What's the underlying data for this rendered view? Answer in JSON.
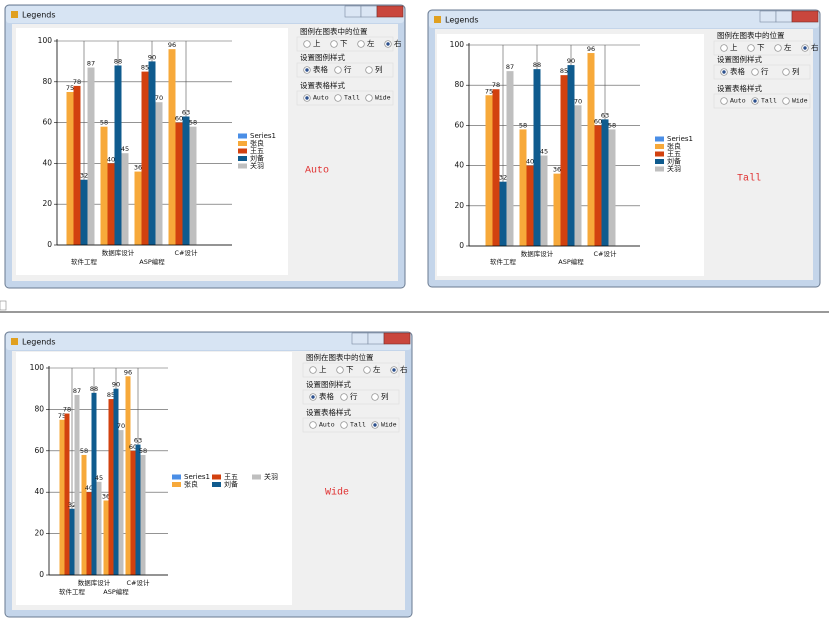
{
  "windows": [
    {
      "title": "Legends",
      "label": "Auto",
      "chart": {
        "type": "bar",
        "categories": [
          "软件工程",
          "数据库设计",
          "ASP编程",
          "C#设计"
        ],
        "series": [
          {
            "name": "Series1",
            "color": "#4a8ee6",
            "values": [
              null,
              null,
              null,
              null
            ]
          },
          {
            "name": "张良",
            "color": "#f7a93a",
            "values": [
              75,
              58,
              36,
              96
            ]
          },
          {
            "name": "王五",
            "color": "#d2410f",
            "values": [
              78,
              40,
              85,
              60
            ]
          },
          {
            "name": "刘备",
            "color": "#0f5b8e",
            "values": [
              32,
              88,
              90,
              63
            ]
          },
          {
            "name": "关羽",
            "color": "#bfbfbf",
            "values": [
              87,
              45,
              70,
              58
            ]
          }
        ],
        "ylim": [
          0,
          100
        ],
        "yticks": [
          0,
          20,
          40,
          60,
          80,
          100
        ],
        "grid": true
      },
      "panel": [
        {
          "title": "图例在图表中的位置",
          "options": [
            "上",
            "下",
            "左",
            "右"
          ],
          "selected": 3
        },
        {
          "title": "设置图例样式",
          "options": [
            "表格",
            "行",
            "列"
          ],
          "selected": 0
        },
        {
          "title": "设置表格样式",
          "options": [
            "Auto",
            "Tall",
            "Wide"
          ],
          "selected": 0
        }
      ]
    },
    {
      "title": "Legends",
      "label": "Tall",
      "chart": {
        "type": "bar",
        "categories": [
          "软件工程",
          "数据库设计",
          "ASP编程",
          "C#设计"
        ],
        "series": [
          {
            "name": "Series1",
            "color": "#4a8ee6",
            "values": [
              null,
              null,
              null,
              null
            ]
          },
          {
            "name": "张良",
            "color": "#f7a93a",
            "values": [
              75,
              58,
              36,
              96
            ]
          },
          {
            "name": "王五",
            "color": "#d2410f",
            "values": [
              78,
              40,
              85,
              60
            ]
          },
          {
            "name": "刘备",
            "color": "#0f5b8e",
            "values": [
              32,
              88,
              90,
              63
            ]
          },
          {
            "name": "关羽",
            "color": "#bfbfbf",
            "values": [
              87,
              45,
              70,
              58
            ]
          }
        ],
        "ylim": [
          0,
          100
        ],
        "yticks": [
          0,
          20,
          40,
          60,
          80,
          100
        ],
        "grid": true
      },
      "panel": [
        {
          "title": "图例在图表中的位置",
          "options": [
            "上",
            "下",
            "左",
            "右"
          ],
          "selected": 3
        },
        {
          "title": "设置图例样式",
          "options": [
            "表格",
            "行",
            "列"
          ],
          "selected": 0
        },
        {
          "title": "设置表格样式",
          "options": [
            "Auto",
            "Tall",
            "Wide"
          ],
          "selected": 1
        }
      ]
    },
    {
      "title": "Legends",
      "label": "Wide",
      "chart": {
        "type": "bar",
        "categories": [
          "软件工程",
          "数据库设计",
          "ASP编程",
          "C#设计"
        ],
        "series": [
          {
            "name": "Series1",
            "color": "#4a8ee6",
            "values": [
              null,
              null,
              null,
              null
            ]
          },
          {
            "name": "张良",
            "color": "#f7a93a",
            "values": [
              75,
              58,
              36,
              96
            ]
          },
          {
            "name": "王五",
            "color": "#d2410f",
            "values": [
              78,
              40,
              85,
              60
            ]
          },
          {
            "name": "刘备",
            "color": "#0f5b8e",
            "values": [
              32,
              88,
              90,
              63
            ]
          },
          {
            "name": "关羽",
            "color": "#bfbfbf",
            "values": [
              87,
              45,
              70,
              58
            ]
          }
        ],
        "ylim": [
          0,
          100
        ],
        "yticks": [
          0,
          20,
          40,
          60,
          80,
          100
        ],
        "grid": true
      },
      "panel": [
        {
          "title": "图例在图表中的位置",
          "options": [
            "上",
            "下",
            "左",
            "右"
          ],
          "selected": 3
        },
        {
          "title": "设置图例样式",
          "options": [
            "表格",
            "行",
            "列"
          ],
          "selected": 0
        },
        {
          "title": "设置表格样式",
          "options": [
            "Auto",
            "Tall",
            "Wide"
          ],
          "selected": 2
        }
      ]
    }
  ]
}
